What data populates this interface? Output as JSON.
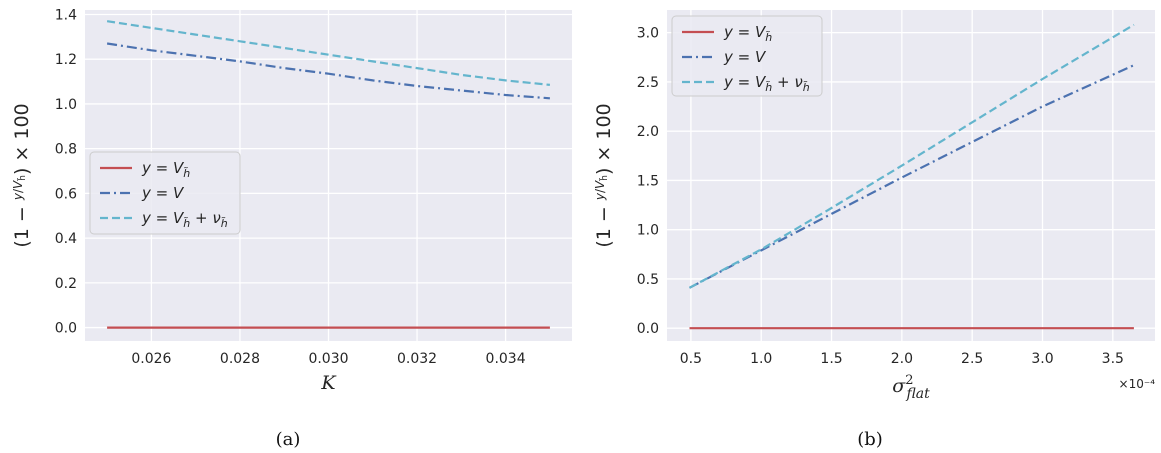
{
  "colors": {
    "background": "#eaeaf2",
    "grid": "#ffffff",
    "red": "#c44e52",
    "blue": "#4c72b0",
    "cyan": "#64b5cd"
  },
  "chart_data": [
    {
      "type": "line",
      "caption": "(a)",
      "xlabel": "K",
      "ylabel": "(1 − y/V_h̃) × 100",
      "xlim": [
        0.0245,
        0.0355
      ],
      "ylim": [
        -0.06,
        1.42
      ],
      "xticks": [
        0.026,
        0.028,
        0.03,
        0.032,
        0.034
      ],
      "xtick_labels": [
        "0.026",
        "0.028",
        "0.030",
        "0.032",
        "0.034"
      ],
      "yticks": [
        0.0,
        0.2,
        0.4,
        0.6,
        0.8,
        1.0,
        1.2,
        1.4
      ],
      "ytick_labels": [
        "0.0",
        "0.2",
        "0.4",
        "0.6",
        "0.8",
        "1.0",
        "1.2",
        "1.4"
      ],
      "legend_position": "center-left",
      "x": [
        0.025,
        0.026,
        0.027,
        0.028,
        0.029,
        0.03,
        0.031,
        0.032,
        0.033,
        0.034,
        0.035
      ],
      "series": [
        {
          "name": "y = V_h̃",
          "style": "solid",
          "color": "#c44e52",
          "values": [
            0,
            0,
            0,
            0,
            0,
            0,
            0,
            0,
            0,
            0,
            0
          ]
        },
        {
          "name": "y = V",
          "style": "dashdot",
          "color": "#4c72b0",
          "values": [
            1.27,
            1.24,
            1.215,
            1.19,
            1.16,
            1.135,
            1.105,
            1.08,
            1.06,
            1.04,
            1.025
          ]
        },
        {
          "name": "y = V_h̃ + ν_h̃",
          "style": "dashed",
          "color": "#64b5cd",
          "values": [
            1.37,
            1.34,
            1.31,
            1.28,
            1.25,
            1.22,
            1.19,
            1.16,
            1.13,
            1.105,
            1.085
          ]
        }
      ]
    },
    {
      "type": "line",
      "caption": "(b)",
      "xlabel": "σ²_flat",
      "ylabel": "(1 − y/V_h̃) × 100",
      "x_multiplier": "×10⁻⁴",
      "xlim": [
        0.33,
        3.8
      ],
      "ylim": [
        -0.13,
        3.23
      ],
      "xticks": [
        0.5,
        1.0,
        1.5,
        2.0,
        2.5,
        3.0,
        3.5
      ],
      "xtick_labels": [
        "0.5",
        "1.0",
        "1.5",
        "2.0",
        "2.5",
        "3.0",
        "3.5"
      ],
      "yticks": [
        0.0,
        0.5,
        1.0,
        1.5,
        2.0,
        2.5,
        3.0
      ],
      "ytick_labels": [
        "0.0",
        "0.5",
        "1.0",
        "1.5",
        "2.0",
        "2.5",
        "3.0"
      ],
      "legend_position": "top-left",
      "x": [
        0.49,
        1.0,
        1.5,
        2.0,
        2.5,
        3.0,
        3.65
      ],
      "series": [
        {
          "name": "y = V_h̃",
          "style": "solid",
          "color": "#c44e52",
          "values": [
            0,
            0,
            0,
            0,
            0,
            0,
            0
          ]
        },
        {
          "name": "y = V",
          "style": "dashdot",
          "color": "#4c72b0",
          "values": [
            0.41,
            0.79,
            1.16,
            1.53,
            1.89,
            2.25,
            2.67
          ]
        },
        {
          "name": "y = V_h̃ + ν_h̃",
          "style": "dashed",
          "color": "#64b5cd",
          "values": [
            0.41,
            0.8,
            1.22,
            1.65,
            2.09,
            2.53,
            3.08
          ]
        }
      ]
    }
  ]
}
